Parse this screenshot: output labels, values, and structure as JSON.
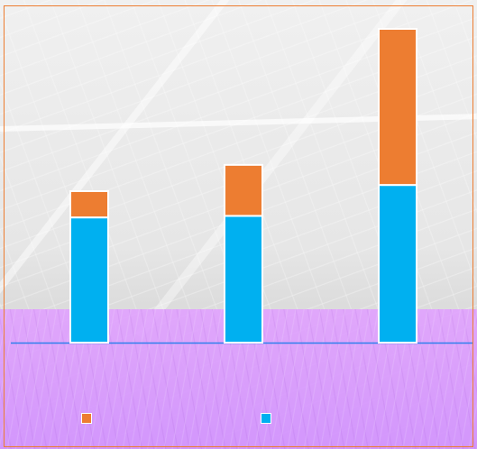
{
  "colors": {
    "series_top": "#ED7D31",
    "series_bottom": "#00B0F0",
    "axis_line": "#2F80ED",
    "bar_outline": "#FFFFFF",
    "frame_border": "#ED7D31",
    "overlay_purple": "#D890FF"
  },
  "chart_data": {
    "type": "bar",
    "stacked": true,
    "title": "",
    "xlabel": "",
    "ylabel": "",
    "categories": [
      "",
      "",
      ""
    ],
    "series": [
      {
        "values": [
          81,
          82,
          102
        ]
      },
      {
        "values": [
          17,
          33,
          101
        ]
      }
    ],
    "ylim": [
      0,
      210
    ],
    "grid": false,
    "legend_placement": "bottom"
  },
  "legend": {
    "items": [
      {
        "label": "",
        "color_key": "series_top"
      },
      {
        "label": "",
        "color_key": "series_bottom"
      }
    ]
  }
}
